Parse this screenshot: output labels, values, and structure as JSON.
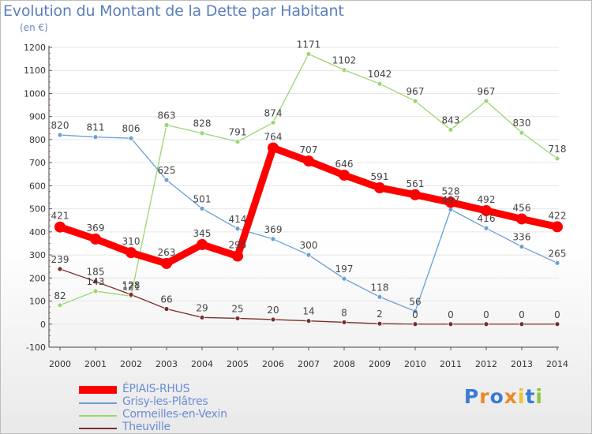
{
  "header": {
    "title": "Evolution du Montant de la Dette par Habitant",
    "subtitle": "(en €)"
  },
  "brand": {
    "text": "Proxiti",
    "letter_colors": [
      "#3a7bd5",
      "#e8892b",
      "#3a7bd5",
      "#e8892b",
      "#f2c12e",
      "#3a7bd5",
      "#8cc63f"
    ]
  },
  "chart_data": {
    "type": "line",
    "x": [
      "2000",
      "2001",
      "2002",
      "2003",
      "2004",
      "2005",
      "2006",
      "2007",
      "2008",
      "2009",
      "2010",
      "2011",
      "2012",
      "2013",
      "2014"
    ],
    "ylim": [
      -100,
      1200
    ],
    "yticks": [
      -100,
      0,
      100,
      200,
      300,
      400,
      500,
      600,
      700,
      800,
      900,
      1000,
      1100,
      1200
    ],
    "grid": "horizontal",
    "legend_position": "bottom-left",
    "series": [
      {
        "name": "Cormeilles-en-Vexin",
        "color": "#9bd66f",
        "values": [
          82,
          143,
          121,
          863,
          828,
          791,
          874,
          1171,
          1102,
          1042,
          967,
          843,
          967,
          830,
          718
        ],
        "labels": [
          "82",
          "143",
          "121",
          "863",
          "828",
          "791",
          "874",
          "1171",
          "1102",
          "1042",
          "967",
          "843",
          "967",
          "830",
          "718"
        ],
        "emphasis": false
      },
      {
        "name": "Grisy-les-Plâtres",
        "color": "#6a9fd4",
        "values": [
          820,
          811,
          806,
          625,
          501,
          414,
          369,
          300,
          197,
          118,
          56,
          497,
          416,
          336,
          265
        ],
        "labels": [
          "820",
          "811",
          "806",
          "625",
          "501",
          "414",
          "369",
          "300",
          "197",
          "118",
          "56",
          "497",
          "416",
          "336",
          "265"
        ],
        "emphasis": false
      },
      {
        "name": "Theuville",
        "color": "#7b2d2d",
        "values": [
          239,
          185,
          128,
          66,
          29,
          25,
          20,
          14,
          8,
          2,
          0,
          0,
          0,
          0,
          0
        ],
        "labels": [
          "239",
          "185",
          "128",
          "66",
          "29",
          "25",
          "20",
          "14",
          "8",
          "2",
          "0",
          "0",
          "0",
          "0",
          "0"
        ],
        "emphasis": false
      },
      {
        "name": "ÉPIAIS-RHUS",
        "color": "#ff0000",
        "values": [
          421,
          369,
          310,
          263,
          345,
          295,
          764,
          707,
          646,
          591,
          561,
          528,
          492,
          456,
          422
        ],
        "labels": [
          "421",
          "369",
          "310",
          "263",
          "345",
          "295",
          "764",
          "707",
          "646",
          "591",
          "561",
          "528",
          "492",
          "456",
          "422"
        ],
        "emphasis": true
      }
    ],
    "legend_order": [
      "ÉPIAIS-RHUS",
      "Grisy-les-Plâtres",
      "Cormeilles-en-Vexin",
      "Theuville"
    ]
  }
}
